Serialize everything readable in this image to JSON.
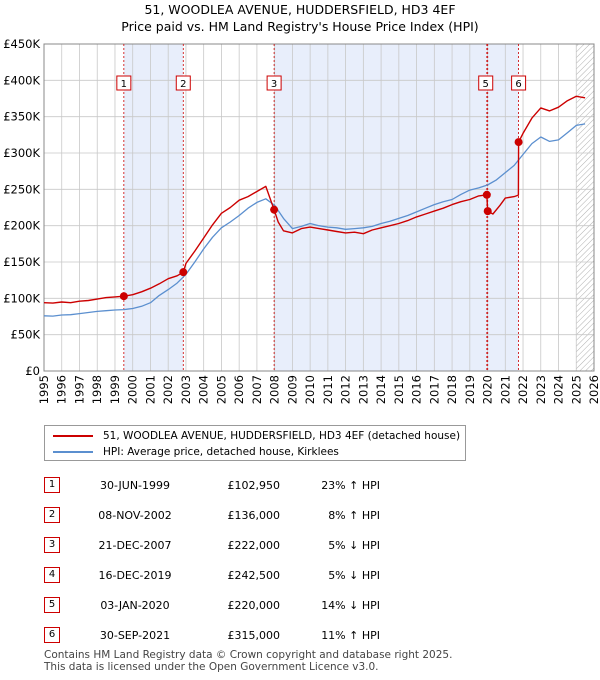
{
  "title": {
    "line1": "51, WOODLEA AVENUE, HUDDERSFIELD, HD3 4EF",
    "line2": "Price paid vs. HM Land Registry's House Price Index (HPI)"
  },
  "colors": {
    "price_line": "#cc0000",
    "hpi_line": "#5b8fcf",
    "shade": "#e8eefb",
    "grid": "#c8c8c8",
    "marker": "#cc0000"
  },
  "legend": {
    "price_label": "51, WOODLEA AVENUE, HUDDERSFIELD, HD3 4EF (detached house)",
    "hpi_label": "HPI: Average price, detached house, Kirklees"
  },
  "sales": [
    {
      "num": "1",
      "date": "30-JUN-1999",
      "price": "£102,950",
      "hpi": "23% ↑ HPI"
    },
    {
      "num": "2",
      "date": "08-NOV-2002",
      "price": "£136,000",
      "hpi": "8% ↑ HPI"
    },
    {
      "num": "3",
      "date": "21-DEC-2007",
      "price": "£222,000",
      "hpi": "5% ↓ HPI"
    },
    {
      "num": "4",
      "date": "16-DEC-2019",
      "price": "£242,500",
      "hpi": "5% ↓ HPI"
    },
    {
      "num": "5",
      "date": "03-JAN-2020",
      "price": "£220,000",
      "hpi": "14% ↓ HPI"
    },
    {
      "num": "6",
      "date": "30-SEP-2021",
      "price": "£315,000",
      "hpi": "11% ↑ HPI"
    }
  ],
  "footer": {
    "line1": "Contains HM Land Registry data © Crown copyright and database right 2025.",
    "line2": "This data is licensed under the Open Government Licence v3.0."
  },
  "chart_data": {
    "type": "line",
    "title": "Price paid vs. HM Land Registry's House Price Index (HPI)",
    "xlabel": "",
    "ylabel": "",
    "xlim": [
      1995,
      2026
    ],
    "ylim": [
      0,
      450000
    ],
    "grid": true,
    "x_ticks": [
      "1995",
      "1996",
      "1997",
      "1998",
      "1999",
      "2000",
      "2001",
      "2002",
      "2003",
      "2004",
      "2005",
      "2006",
      "2007",
      "2008",
      "2009",
      "2010",
      "2011",
      "2012",
      "2013",
      "2014",
      "2015",
      "2016",
      "2017",
      "2018",
      "2019",
      "2020",
      "2021",
      "2022",
      "2023",
      "2024",
      "2025",
      "2026"
    ],
    "y_ticks": [
      0,
      50000,
      100000,
      150000,
      200000,
      250000,
      300000,
      350000,
      400000,
      450000
    ],
    "y_tick_labels": [
      "£0",
      "£50K",
      "£100K",
      "£150K",
      "£200K",
      "£250K",
      "£300K",
      "£350K",
      "£400K",
      "£450K"
    ],
    "shaded_periods": [
      [
        1999.5,
        2002.85
      ],
      [
        2007.97,
        2019.96
      ],
      [
        2020.01,
        2021.75
      ]
    ],
    "hatched_after": 2025.0,
    "series": [
      {
        "name": "51, WOODLEA AVENUE, HUDDERSFIELD, HD3 4EF (detached house)",
        "x": [
          1995,
          1995.5,
          1996,
          1996.5,
          1997,
          1997.5,
          1998,
          1998.5,
          1999,
          1999.5,
          2000,
          2000.5,
          2001,
          2001.5,
          2002,
          2002.5,
          2002.85,
          2003,
          2003.5,
          2004,
          2004.5,
          2005,
          2005.5,
          2006,
          2006.5,
          2007,
          2007.5,
          2007.97,
          2008.2,
          2008.5,
          2009,
          2009.5,
          2010,
          2010.5,
          2011,
          2011.5,
          2012,
          2012.5,
          2013,
          2013.5,
          2014,
          2014.5,
          2015,
          2015.5,
          2016,
          2016.5,
          2017,
          2017.5,
          2018,
          2018.5,
          2019,
          2019.5,
          2019.96,
          2020.01,
          2020.3,
          2020.7,
          2021,
          2021.5,
          2021.74,
          2021.75,
          2022,
          2022.5,
          2023,
          2023.5,
          2024,
          2024.5,
          2025,
          2025.5
        ],
        "y": [
          94000,
          93500,
          95000,
          94000,
          96000,
          97000,
          99000,
          101000,
          102000,
          102950,
          105000,
          109000,
          114000,
          120000,
          127000,
          131000,
          136000,
          148000,
          165000,
          183000,
          201000,
          217000,
          225000,
          235000,
          240000,
          247000,
          254000,
          222000,
          205000,
          193000,
          190000,
          196000,
          198000,
          196000,
          194000,
          192000,
          190000,
          191000,
          189000,
          194000,
          197000,
          200000,
          203000,
          207000,
          212000,
          216000,
          220000,
          224000,
          229000,
          233000,
          236000,
          241000,
          242500,
          220000,
          216000,
          228000,
          238000,
          240000,
          242000,
          315000,
          327000,
          348000,
          362000,
          358000,
          363000,
          372000,
          378000,
          376000
        ]
      },
      {
        "name": "HPI: Average price, detached house, Kirklees",
        "x": [
          1995,
          1995.5,
          1996,
          1996.5,
          1997,
          1997.5,
          1998,
          1998.5,
          1999,
          1999.5,
          2000,
          2000.5,
          2001,
          2001.5,
          2002,
          2002.5,
          2003,
          2003.5,
          2004,
          2004.5,
          2005,
          2005.5,
          2006,
          2006.5,
          2007,
          2007.5,
          2008,
          2008.5,
          2009,
          2009.5,
          2010,
          2010.5,
          2011,
          2011.5,
          2012,
          2012.5,
          2013,
          2013.5,
          2014,
          2014.5,
          2015,
          2015.5,
          2016,
          2016.5,
          2017,
          2017.5,
          2018,
          2018.5,
          2019,
          2019.5,
          2020,
          2020.5,
          2021,
          2021.5,
          2022,
          2022.5,
          2023,
          2023.5,
          2024,
          2024.5,
          2025,
          2025.5
        ],
        "y": [
          76000,
          75500,
          77000,
          77500,
          79000,
          80500,
          82000,
          83000,
          84000,
          84500,
          86000,
          89000,
          94000,
          104000,
          112000,
          121000,
          133000,
          150000,
          168000,
          184000,
          197000,
          205000,
          214000,
          224000,
          232000,
          237000,
          228000,
          210000,
          196000,
          199000,
          203000,
          200000,
          198000,
          197000,
          195000,
          196000,
          197000,
          199000,
          203000,
          206000,
          210000,
          214000,
          219000,
          224000,
          229000,
          233000,
          236000,
          243000,
          249000,
          252000,
          256000,
          263000,
          273000,
          283000,
          298000,
          313000,
          322000,
          316000,
          318000,
          328000,
          338000,
          340000
        ]
      }
    ],
    "sale_points": [
      {
        "label": "1",
        "x": 1999.5,
        "y": 102950
      },
      {
        "label": "2",
        "x": 2002.85,
        "y": 136000
      },
      {
        "label": "3",
        "x": 2007.97,
        "y": 222000
      },
      {
        "label": "4",
        "x": 2019.96,
        "y": 242500
      },
      {
        "label": "5",
        "x": 2020.01,
        "y": 220000
      },
      {
        "label": "6",
        "x": 2021.75,
        "y": 315000
      }
    ]
  }
}
